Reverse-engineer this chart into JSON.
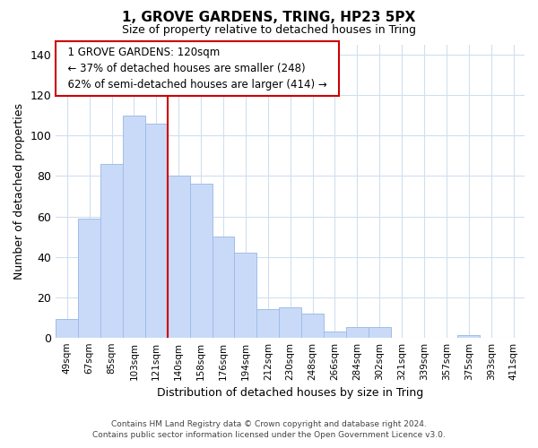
{
  "title": "1, GROVE GARDENS, TRING, HP23 5PX",
  "subtitle": "Size of property relative to detached houses in Tring",
  "xlabel": "Distribution of detached houses by size in Tring",
  "ylabel": "Number of detached properties",
  "bar_labels": [
    "49sqm",
    "67sqm",
    "85sqm",
    "103sqm",
    "121sqm",
    "140sqm",
    "158sqm",
    "176sqm",
    "194sqm",
    "212sqm",
    "230sqm",
    "248sqm",
    "266sqm",
    "284sqm",
    "302sqm",
    "321sqm",
    "339sqm",
    "357sqm",
    "375sqm",
    "393sqm",
    "411sqm"
  ],
  "bar_values": [
    9,
    59,
    86,
    110,
    106,
    80,
    76,
    50,
    42,
    14,
    15,
    12,
    3,
    5,
    5,
    0,
    0,
    0,
    1,
    0,
    0
  ],
  "bar_color": "#c9daf8",
  "bar_edgecolor": "#a0bde8",
  "vline_x_index": 4,
  "vline_color": "#cc0000",
  "ylim": [
    0,
    145
  ],
  "yticks": [
    0,
    20,
    40,
    60,
    80,
    100,
    120,
    140
  ],
  "annotation_title": "1 GROVE GARDENS: 120sqm",
  "annotation_line1": "← 37% of detached houses are smaller (248)",
  "annotation_line2": "62% of semi-detached houses are larger (414) →",
  "annotation_box_color": "#ffffff",
  "annotation_box_edgecolor": "#cc0000",
  "footer_line1": "Contains HM Land Registry data © Crown copyright and database right 2024.",
  "footer_line2": "Contains public sector information licensed under the Open Government Licence v3.0.",
  "background_color": "#ffffff",
  "grid_color": "#d0dff0"
}
